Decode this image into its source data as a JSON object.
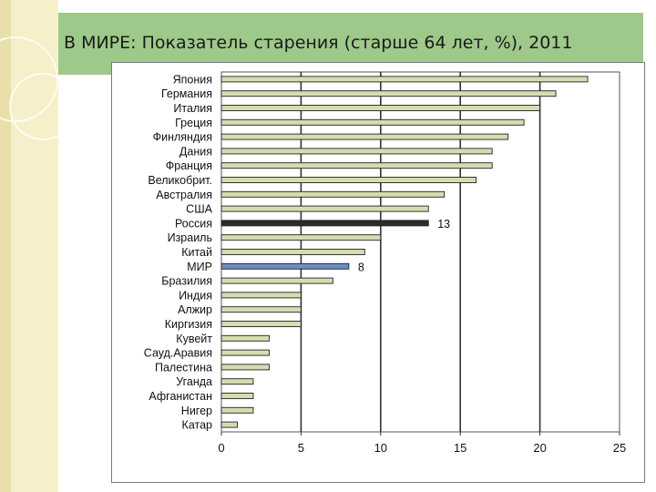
{
  "slide": {
    "title": "В МИРЕ: Показатель старения (старше 64 лет, %), 2011"
  },
  "colors": {
    "bar_default": "#d8dbb0",
    "bar_russia": "#2b2b2b",
    "bar_world": "#6a8fc4",
    "title_bg": "#9ec98a"
  },
  "chart_data": {
    "type": "bar",
    "orientation": "horizontal",
    "title": "",
    "xlabel": "",
    "ylabel": "",
    "xlim": [
      0,
      25
    ],
    "xticks": [
      0,
      5,
      10,
      15,
      20,
      25
    ],
    "grid": "vertical",
    "categories": [
      "Япония",
      "Германия",
      "Италия",
      "Греция",
      "Финляндия",
      "Дания",
      "Франция",
      "Великобрит.",
      "Австралия",
      "США",
      "Россия",
      "Израиль",
      "Китай",
      "МИР",
      "Бразилия",
      "Индия",
      "Алжир",
      "Киргизия",
      "Кувейт",
      "Сауд.Аравия",
      "Палестина",
      "Уганда",
      "Афганистан",
      "Нигер",
      "Катар"
    ],
    "values": [
      23,
      21,
      20,
      19,
      18,
      17,
      17,
      16,
      14,
      13,
      13,
      10,
      9,
      8,
      7,
      5,
      5,
      5,
      3,
      3,
      3,
      2,
      2,
      2,
      1
    ],
    "highlights": [
      {
        "category": "Россия",
        "label": "13",
        "color": "#2b2b2b"
      },
      {
        "category": "МИР",
        "label": "8",
        "color": "#6a8fc4"
      }
    ]
  }
}
